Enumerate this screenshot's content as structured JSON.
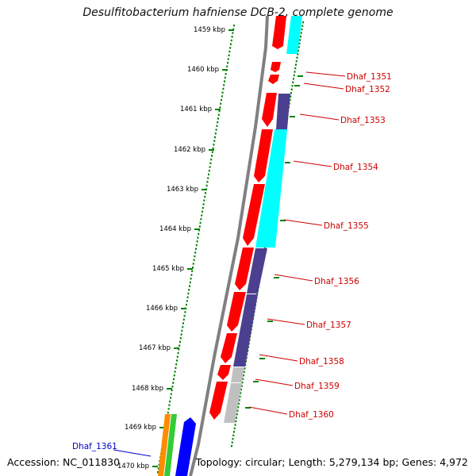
{
  "title": "Desulfitobacterium hafniense DCB-2, complete genome",
  "accession": "Accession: NC_011830",
  "summary": "Topology: circular; Length: 5,279,134 bp; Genes: 4,972",
  "colors": {
    "tick": "#008000",
    "backbone": "#808080",
    "forward_red": "#ff0000",
    "cyan": "#00ffff",
    "navy": "#4b3f8f",
    "gray": "#c0c0c0",
    "orange": "#ff8c00",
    "green": "#33cc33",
    "blue": "#0000ff",
    "label_red": "#cc0000",
    "label_blue": "#0000cc"
  },
  "ticks": [
    "1459 kbp",
    "1460 kbp",
    "1461 kbp",
    "1462 kbp",
    "1463 kbp",
    "1464 kbp",
    "1465 kbp",
    "1466 kbp",
    "1467 kbp",
    "1468 kbp",
    "1469 kbp",
    "1470 kbp"
  ],
  "genes": [
    {
      "label": "Dhaf_1351",
      "color": "label_red"
    },
    {
      "label": "Dhaf_1352",
      "color": "label_red"
    },
    {
      "label": "Dhaf_1353",
      "color": "label_red"
    },
    {
      "label": "Dhaf_1354",
      "color": "label_red"
    },
    {
      "label": "Dhaf_1355",
      "color": "label_red"
    },
    {
      "label": "Dhaf_1356",
      "color": "label_red"
    },
    {
      "label": "Dhaf_1357",
      "color": "label_red"
    },
    {
      "label": "Dhaf_1358",
      "color": "label_red"
    },
    {
      "label": "Dhaf_1359",
      "color": "label_red"
    },
    {
      "label": "Dhaf_1360",
      "color": "label_red"
    },
    {
      "label": "Dhaf_1361",
      "color": "label_blue"
    }
  ]
}
